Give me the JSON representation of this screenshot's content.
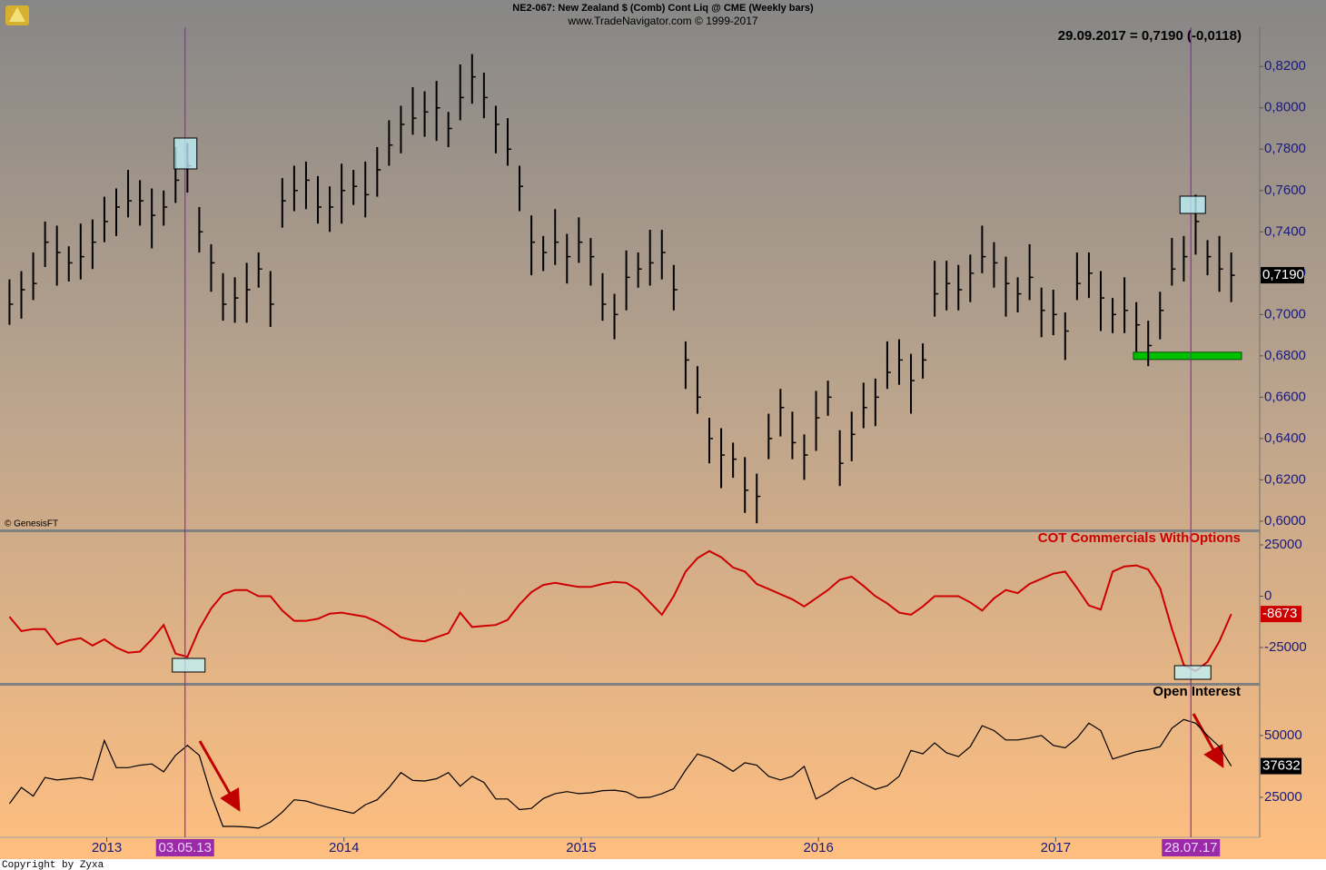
{
  "chart_data": {
    "type": "financial",
    "title": "NE2-067:  New Zealand $ (Comb) Cont Liq @ CME  (Weekly bars)",
    "subtitle": "www.TradeNavigator.com © 1999-2017",
    "readout": "29.09.2017 = 0,7190 (-0,0118)",
    "source": "© GenesisFT",
    "footer": "Copyright by Zyxa",
    "xlim": [
      2012.55,
      2017.86
    ],
    "xticks": [
      2013,
      2014,
      2015,
      2016,
      2017
    ],
    "markers": [
      {
        "label": "03.05.13",
        "x": 2013.33
      },
      {
        "label": "28.07.17",
        "x": 2017.57
      }
    ],
    "x": [
      2012.59,
      2012.64,
      2012.69,
      2012.74,
      2012.79,
      2012.84,
      2012.89,
      2012.94,
      2012.99,
      2013.04,
      2013.09,
      2013.14,
      2013.19,
      2013.24,
      2013.29,
      2013.34,
      2013.39,
      2013.44,
      2013.49,
      2013.54,
      2013.59,
      2013.64,
      2013.69,
      2013.74,
      2013.79,
      2013.84,
      2013.89,
      2013.94,
      2013.99,
      2014.04,
      2014.09,
      2014.14,
      2014.19,
      2014.24,
      2014.29,
      2014.34,
      2014.39,
      2014.44,
      2014.49,
      2014.54,
      2014.59,
      2014.64,
      2014.69,
      2014.74,
      2014.79,
      2014.84,
      2014.89,
      2014.94,
      2014.99,
      2015.04,
      2015.09,
      2015.14,
      2015.19,
      2015.24,
      2015.29,
      2015.34,
      2015.39,
      2015.44,
      2015.49,
      2015.54,
      2015.59,
      2015.64,
      2015.69,
      2015.74,
      2015.79,
      2015.84,
      2015.89,
      2015.94,
      2015.99,
      2016.04,
      2016.09,
      2016.14,
      2016.19,
      2016.24,
      2016.29,
      2016.34,
      2016.39,
      2016.44,
      2016.49,
      2016.54,
      2016.59,
      2016.64,
      2016.69,
      2016.74,
      2016.79,
      2016.84,
      2016.89,
      2016.94,
      2016.99,
      2017.04,
      2017.09,
      2017.14,
      2017.19,
      2017.24,
      2017.29,
      2017.34,
      2017.39,
      2017.44,
      2017.49,
      2017.54,
      2017.59,
      2017.64,
      2017.69,
      2017.74
    ],
    "panels": [
      {
        "type": "ohlc",
        "color": "#000000",
        "ylim": [
          0.596,
          0.839
        ],
        "yticks": [
          {
            "value": 0.82,
            "label": "0,8200"
          },
          {
            "value": 0.8,
            "label": "0,8000"
          },
          {
            "value": 0.78,
            "label": "0,7800"
          },
          {
            "value": 0.76,
            "label": "0,7600"
          },
          {
            "value": 0.74,
            "label": "0,7400"
          },
          {
            "value": 0.72,
            "label": "0,7200"
          },
          {
            "value": 0.7,
            "label": "0,7000"
          },
          {
            "value": 0.68,
            "label": "0,6800"
          },
          {
            "value": 0.66,
            "label": "0,6600"
          },
          {
            "value": 0.64,
            "label": "0,6400"
          },
          {
            "value": 0.62,
            "label": "0,6200"
          },
          {
            "value": 0.6,
            "label": "0,6000"
          }
        ],
        "support_level": 0.68,
        "support_color": "#00c000",
        "last_label": "0,7190",
        "high": [
          0.717,
          0.721,
          0.73,
          0.745,
          0.743,
          0.733,
          0.744,
          0.746,
          0.757,
          0.761,
          0.77,
          0.765,
          0.761,
          0.76,
          0.781,
          0.783,
          0.752,
          0.734,
          0.72,
          0.718,
          0.725,
          0.73,
          0.721,
          0.766,
          0.772,
          0.774,
          0.767,
          0.762,
          0.773,
          0.77,
          0.774,
          0.781,
          0.794,
          0.801,
          0.81,
          0.808,
          0.813,
          0.798,
          0.821,
          0.826,
          0.817,
          0.801,
          0.795,
          0.772,
          0.748,
          0.738,
          0.751,
          0.739,
          0.747,
          0.737,
          0.72,
          0.71,
          0.731,
          0.73,
          0.741,
          0.741,
          0.724,
          0.687,
          0.675,
          0.65,
          0.645,
          0.638,
          0.631,
          0.623,
          0.652,
          0.664,
          0.653,
          0.642,
          0.663,
          0.668,
          0.644,
          0.653,
          0.667,
          0.669,
          0.687,
          0.688,
          0.681,
          0.686,
          0.726,
          0.726,
          0.724,
          0.729,
          0.743,
          0.735,
          0.728,
          0.718,
          0.734,
          0.713,
          0.712,
          0.701,
          0.73,
          0.73,
          0.721,
          0.708,
          0.718,
          0.706,
          0.697,
          0.711,
          0.737,
          0.738,
          0.758,
          0.736,
          0.738,
          0.73
        ],
        "low": [
          0.695,
          0.698,
          0.707,
          0.723,
          0.714,
          0.716,
          0.717,
          0.722,
          0.735,
          0.738,
          0.747,
          0.743,
          0.732,
          0.743,
          0.754,
          0.759,
          0.73,
          0.711,
          0.697,
          0.696,
          0.696,
          0.713,
          0.694,
          0.742,
          0.75,
          0.751,
          0.744,
          0.74,
          0.744,
          0.753,
          0.747,
          0.757,
          0.772,
          0.778,
          0.787,
          0.786,
          0.784,
          0.781,
          0.794,
          0.802,
          0.795,
          0.778,
          0.772,
          0.75,
          0.719,
          0.721,
          0.724,
          0.715,
          0.725,
          0.714,
          0.697,
          0.688,
          0.702,
          0.713,
          0.714,
          0.717,
          0.702,
          0.664,
          0.652,
          0.628,
          0.616,
          0.621,
          0.604,
          0.599,
          0.63,
          0.641,
          0.63,
          0.62,
          0.634,
          0.651,
          0.617,
          0.629,
          0.645,
          0.646,
          0.664,
          0.666,
          0.652,
          0.669,
          0.699,
          0.702,
          0.702,
          0.706,
          0.72,
          0.713,
          0.699,
          0.701,
          0.707,
          0.689,
          0.69,
          0.678,
          0.707,
          0.708,
          0.692,
          0.691,
          0.691,
          0.682,
          0.675,
          0.688,
          0.714,
          0.716,
          0.729,
          0.719,
          0.711,
          0.706
        ],
        "close": [
          0.705,
          0.712,
          0.715,
          0.735,
          0.73,
          0.725,
          0.728,
          0.735,
          0.745,
          0.752,
          0.755,
          0.755,
          0.748,
          0.752,
          0.765,
          0.772,
          0.74,
          0.725,
          0.705,
          0.708,
          0.712,
          0.722,
          0.705,
          0.755,
          0.76,
          0.765,
          0.752,
          0.752,
          0.76,
          0.762,
          0.758,
          0.77,
          0.782,
          0.792,
          0.795,
          0.798,
          0.8,
          0.79,
          0.805,
          0.815,
          0.805,
          0.792,
          0.78,
          0.762,
          0.735,
          0.73,
          0.735,
          0.728,
          0.735,
          0.728,
          0.705,
          0.7,
          0.718,
          0.722,
          0.725,
          0.73,
          0.712,
          0.678,
          0.66,
          0.64,
          0.632,
          0.63,
          0.615,
          0.612,
          0.64,
          0.655,
          0.638,
          0.632,
          0.65,
          0.66,
          0.628,
          0.642,
          0.655,
          0.66,
          0.672,
          0.678,
          0.668,
          0.678,
          0.71,
          0.715,
          0.712,
          0.72,
          0.728,
          0.725,
          0.715,
          0.71,
          0.718,
          0.702,
          0.7,
          0.692,
          0.715,
          0.72,
          0.708,
          0.7,
          0.702,
          0.695,
          0.685,
          0.702,
          0.722,
          0.728,
          0.745,
          0.728,
          0.722,
          0.719
        ]
      },
      {
        "type": "line",
        "name": "COT Commercials WithOptions",
        "color": "#cc0000",
        "label_bg": "#cc0000",
        "ylim": [
          -42250,
          31200
        ],
        "yticks": [
          25000,
          0,
          -25000
        ],
        "values": [
          -10000,
          -17000,
          -16000,
          -16000,
          -23500,
          -21500,
          -20500,
          -24000,
          -21000,
          -25000,
          -27500,
          -27000,
          -21000,
          -14000,
          -28000,
          -29500,
          -16000,
          -6000,
          1000,
          3000,
          3000,
          0,
          0,
          -7000,
          -12000,
          -12000,
          -11000,
          -8500,
          -8000,
          -9000,
          -10000,
          -12500,
          -16000,
          -20000,
          -21500,
          -22000,
          -20000,
          -18000,
          -8000,
          -15000,
          -14500,
          -14000,
          -11500,
          -4000,
          2000,
          5500,
          6500,
          5500,
          4500,
          4500,
          6000,
          7000,
          6500,
          3000,
          -3000,
          -9000,
          0,
          12000,
          18500,
          22000,
          19000,
          14000,
          12000,
          6000,
          3500,
          1000,
          -1500,
          -5000,
          -1000,
          3000,
          8000,
          9500,
          5000,
          0,
          -3500,
          -8000,
          -9000,
          -5000,
          0,
          0,
          0,
          -3000,
          -7000,
          -1000,
          3000,
          1500,
          6000,
          8500,
          11000,
          12000,
          4000,
          -4500,
          -6500,
          12000,
          14500,
          15000,
          13000,
          4000,
          -16000,
          -33500,
          -36500,
          -32000,
          -22000,
          -8673
        ]
      },
      {
        "type": "line",
        "name": "Open Interest",
        "color": "#000000",
        "label_bg": "#000000",
        "ylim": [
          8800,
          70200
        ],
        "yticks": [
          50000,
          25000
        ],
        "values": [
          22400,
          29000,
          25500,
          33000,
          32000,
          32500,
          33000,
          32000,
          48000,
          37000,
          37000,
          38000,
          38500,
          35300,
          42000,
          46000,
          42000,
          26000,
          13200,
          13200,
          13000,
          12500,
          15000,
          19000,
          24000,
          23500,
          22000,
          20800,
          19600,
          18500,
          22000,
          24000,
          29000,
          35000,
          31800,
          31600,
          32500,
          35000,
          29500,
          33500,
          31000,
          24300,
          24300,
          20000,
          20500,
          24500,
          26500,
          27300,
          26500,
          26800,
          27700,
          27900,
          27200,
          24800,
          25000,
          26500,
          28500,
          36000,
          42500,
          41000,
          38500,
          35500,
          39000,
          38000,
          33500,
          32000,
          33500,
          37500,
          24300,
          27000,
          30500,
          33000,
          30500,
          28200,
          29700,
          33500,
          44000,
          42600,
          47000,
          43000,
          41500,
          45500,
          54000,
          52000,
          48200,
          48200,
          49000,
          50000,
          46000,
          45000,
          49000,
          55000,
          52000,
          40500,
          42000,
          43500,
          44300,
          45500,
          53000,
          56500,
          55000,
          50000,
          45500,
          37632
        ]
      }
    ]
  }
}
